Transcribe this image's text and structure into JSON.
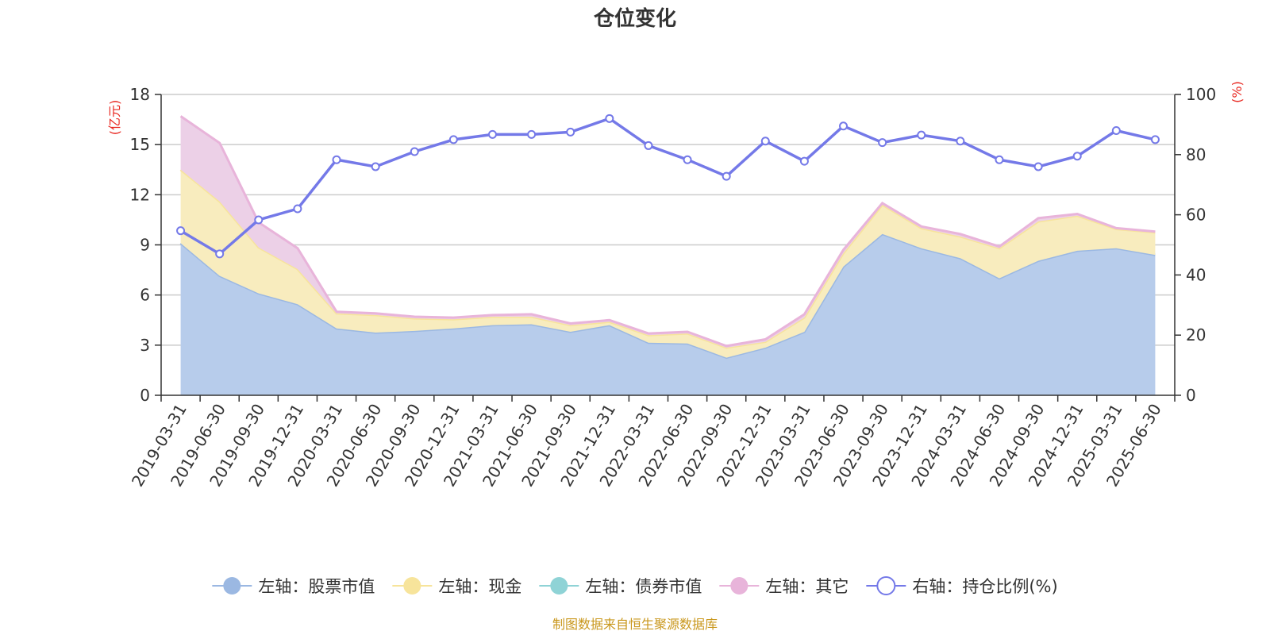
{
  "chart_data": {
    "type": "area",
    "title": "仓位变化",
    "left_unit": "(亿元)",
    "right_unit": "(%)",
    "categories": [
      "2019-03-31",
      "2019-06-30",
      "2019-09-30",
      "2019-12-31",
      "2020-03-31",
      "2020-06-30",
      "2020-09-30",
      "2020-12-31",
      "2021-03-31",
      "2021-06-30",
      "2021-09-30",
      "2021-12-31",
      "2022-03-31",
      "2022-06-30",
      "2022-09-30",
      "2022-12-31",
      "2023-03-31",
      "2023-06-30",
      "2023-09-30",
      "2023-12-31",
      "2024-03-31",
      "2024-06-30",
      "2024-09-30",
      "2024-12-31",
      "2025-03-31",
      "2025-06-30"
    ],
    "left_axis": {
      "ylim": [
        0,
        18
      ],
      "ticks": [
        "0",
        "3",
        "6",
        "9",
        "12",
        "15",
        "18"
      ]
    },
    "right_axis": {
      "ylim": [
        0,
        100
      ],
      "ticks": [
        "0",
        "20",
        "40",
        "60",
        "80",
        "100"
      ]
    },
    "grid": true,
    "legend_position": "bottom",
    "series": [
      {
        "name": "左轴：股票市值",
        "axis": "left",
        "kind": "stacked-area",
        "color": "#9bb8e2",
        "fill": "#b7cceb",
        "values": [
          9.1,
          7.15,
          6.1,
          5.45,
          4.0,
          3.75,
          3.85,
          4.0,
          4.2,
          4.25,
          3.8,
          4.2,
          3.15,
          3.1,
          2.25,
          2.85,
          3.8,
          7.7,
          9.65,
          8.8,
          8.2,
          7.0,
          8.05,
          8.65,
          8.8,
          8.4
        ]
      },
      {
        "name": "左轴：现金",
        "axis": "left",
        "kind": "stacked-area",
        "color": "#f7e49b",
        "fill": "#f8ecbe",
        "values": [
          4.4,
          4.45,
          2.75,
          2.1,
          0.9,
          1.05,
          0.75,
          0.55,
          0.5,
          0.45,
          0.4,
          0.2,
          0.45,
          0.6,
          0.6,
          0.35,
          0.85,
          0.8,
          1.75,
          1.2,
          1.3,
          1.8,
          2.35,
          2.1,
          1.15,
          1.35
        ]
      },
      {
        "name": "左轴：债券市值",
        "axis": "left",
        "kind": "stacked-area",
        "color": "#8fd3d6",
        "fill": "#bfe8e9",
        "values": [
          0,
          0,
          0,
          0,
          0,
          0,
          0,
          0,
          0,
          0,
          0,
          0,
          0,
          0,
          0,
          0,
          0,
          0,
          0,
          0,
          0,
          0,
          0,
          0,
          0,
          0
        ]
      },
      {
        "name": "左轴：其它",
        "axis": "left",
        "kind": "stacked-area",
        "color": "#e8b4da",
        "fill": "#ecd0e7",
        "values": [
          3.2,
          3.5,
          1.5,
          1.25,
          0.1,
          0.1,
          0.1,
          0.1,
          0.1,
          0.15,
          0.1,
          0.1,
          0.1,
          0.1,
          0.1,
          0.15,
          0.2,
          0.2,
          0.1,
          0.1,
          0.15,
          0.1,
          0.2,
          0.1,
          0.05,
          0.05
        ]
      },
      {
        "name": "右轴：持仓比例(%)",
        "axis": "right",
        "kind": "line",
        "color": "#7479e8",
        "values": [
          54.7,
          47.0,
          58.3,
          62.0,
          78.3,
          76.0,
          81.0,
          85.0,
          86.7,
          86.7,
          87.5,
          92.0,
          83.0,
          78.3,
          72.8,
          84.5,
          77.8,
          89.5,
          84.0,
          86.5,
          84.5,
          78.3,
          76.0,
          79.5,
          88.0,
          85.0
        ]
      }
    ]
  },
  "source_text": "制图数据来自恒生聚源数据库"
}
